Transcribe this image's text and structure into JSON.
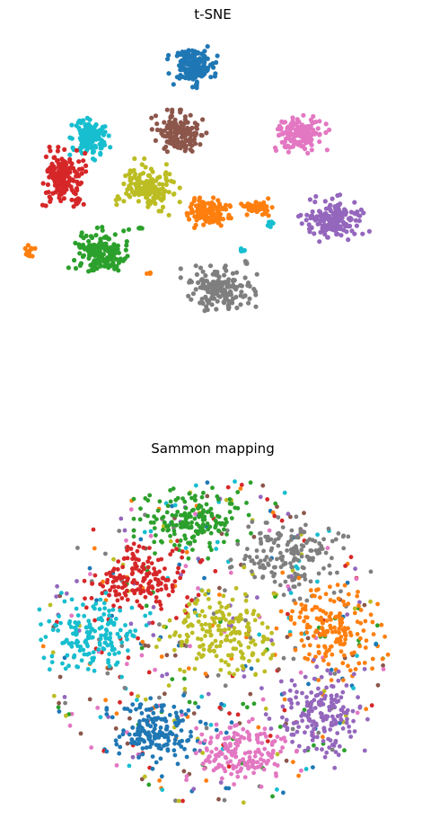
{
  "chart_data": [
    {
      "type": "scatter",
      "title": "t-SNE",
      "xlabel": "",
      "ylabel": "",
      "axes": "off",
      "grid": false,
      "legend": "none",
      "xlim": [
        0,
        100
      ],
      "ylim": [
        0,
        100
      ],
      "marker_size": 2.6,
      "clusters": [
        {
          "color": "#1f77b4",
          "cx": 44.1,
          "cy": 92.5,
          "rx": 6.9,
          "ry": 5.5,
          "n": 170
        },
        {
          "color": "#8c564b",
          "cx": 39.8,
          "cy": 72.6,
          "rx": 7.6,
          "ry": 6.1,
          "n": 165
        },
        {
          "color": "#e377c2",
          "cx": 78.4,
          "cy": 72.4,
          "rx": 8.0,
          "ry": 5.2,
          "n": 165
        },
        {
          "color": "#17becf",
          "cx": 11.2,
          "cy": 71.5,
          "rx": 6.0,
          "ry": 5.9,
          "n": 150
        },
        {
          "color": "#d62728",
          "cx": 2.7,
          "cy": 59.6,
          "rx": 6.5,
          "ry": 7.8,
          "n": 170
        },
        {
          "color": "#bcbd22",
          "cx": 29.7,
          "cy": 56.7,
          "rx": 9.0,
          "ry": 7.3,
          "n": 170
        },
        {
          "color": "#ff7f0e",
          "cx": 49.1,
          "cy": 49.0,
          "rx": 7.3,
          "ry": 3.9,
          "n": 130
        },
        {
          "color": "#ff7f0e",
          "cx": 64.8,
          "cy": 50.5,
          "rx": 4.5,
          "ry": 2.4,
          "n": 60
        },
        {
          "color": "#9467bd",
          "cx": 88.9,
          "cy": 47.0,
          "rx": 10.0,
          "ry": 6.4,
          "n": 170
        },
        {
          "color": "#2ca02c",
          "cx": 15.5,
          "cy": 36.8,
          "rx": 9.4,
          "ry": 7.1,
          "n": 170
        },
        {
          "color": "#7f7f7f",
          "cx": 52.8,
          "cy": 26.1,
          "rx": 10.8,
          "ry": 6.2,
          "n": 170
        },
        {
          "color": "#ff7f0e",
          "cx": -8.0,
          "cy": 37.4,
          "rx": 1.8,
          "ry": 1.7,
          "n": 14
        },
        {
          "color": "#d62728",
          "cx": 3.7,
          "cy": 60.2,
          "rx": 1.2,
          "ry": 1.0,
          "n": 8
        },
        {
          "color": "#d62728",
          "cx": 7.3,
          "cy": 52.8,
          "rx": 2.0,
          "ry": 1.0,
          "n": 10
        },
        {
          "color": "#17becf",
          "cx": 68.9,
          "cy": 45.8,
          "rx": 1.5,
          "ry": 1.4,
          "n": 10
        },
        {
          "color": "#17becf",
          "cx": 60.0,
          "cy": 38.0,
          "rx": 1.0,
          "ry": 1.0,
          "n": 5
        },
        {
          "color": "#2ca02c",
          "cx": 27.5,
          "cy": 44.4,
          "rx": 1.2,
          "ry": 0.6,
          "n": 4
        },
        {
          "color": "#ff7f0e",
          "cx": 30.2,
          "cy": 31.3,
          "rx": 1.0,
          "ry": 0.8,
          "n": 4
        },
        {
          "color": "#7f7f7f",
          "cx": 61.0,
          "cy": 34.4,
          "rx": 1.2,
          "ry": 0.7,
          "n": 4
        }
      ]
    },
    {
      "type": "scatter",
      "title": "Sammon mapping",
      "xlabel": "",
      "ylabel": "",
      "axes": "off",
      "grid": false,
      "legend": "none",
      "xlim": [
        -1,
        1
      ],
      "ylim": [
        -1,
        1
      ],
      "marker_size": 2.4,
      "background_points": 520,
      "background_colors": [
        "#7f7f7f",
        "#8c564b",
        "#ff7f0e",
        "#d62728",
        "#17becf",
        "#bcbd22",
        "#2ca02c",
        "#9467bd",
        "#1f77b4",
        "#e377c2"
      ],
      "clusters": [
        {
          "color": "#2ca02c",
          "cx": -0.11,
          "cy": 0.7,
          "rx": 0.3,
          "ry": 0.18,
          "n": 165
        },
        {
          "color": "#7f7f7f",
          "cx": 0.42,
          "cy": 0.5,
          "rx": 0.32,
          "ry": 0.22,
          "n": 165
        },
        {
          "color": "#d62728",
          "cx": -0.42,
          "cy": 0.37,
          "rx": 0.3,
          "ry": 0.22,
          "n": 165
        },
        {
          "color": "#ff7f0e",
          "cx": 0.65,
          "cy": 0.08,
          "rx": 0.27,
          "ry": 0.26,
          "n": 165
        },
        {
          "color": "#17becf",
          "cx": -0.67,
          "cy": 0.05,
          "rx": 0.27,
          "ry": 0.21,
          "n": 155
        },
        {
          "color": "#bcbd22",
          "cx": 0.03,
          "cy": 0.04,
          "rx": 0.34,
          "ry": 0.23,
          "n": 175
        },
        {
          "color": "#1f77b4",
          "cx": -0.33,
          "cy": -0.52,
          "rx": 0.24,
          "ry": 0.19,
          "n": 165
        },
        {
          "color": "#e377c2",
          "cx": 0.16,
          "cy": -0.65,
          "rx": 0.28,
          "ry": 0.2,
          "n": 165
        },
        {
          "color": "#9467bd",
          "cx": 0.58,
          "cy": -0.42,
          "rx": 0.26,
          "ry": 0.28,
          "n": 165
        }
      ]
    }
  ]
}
